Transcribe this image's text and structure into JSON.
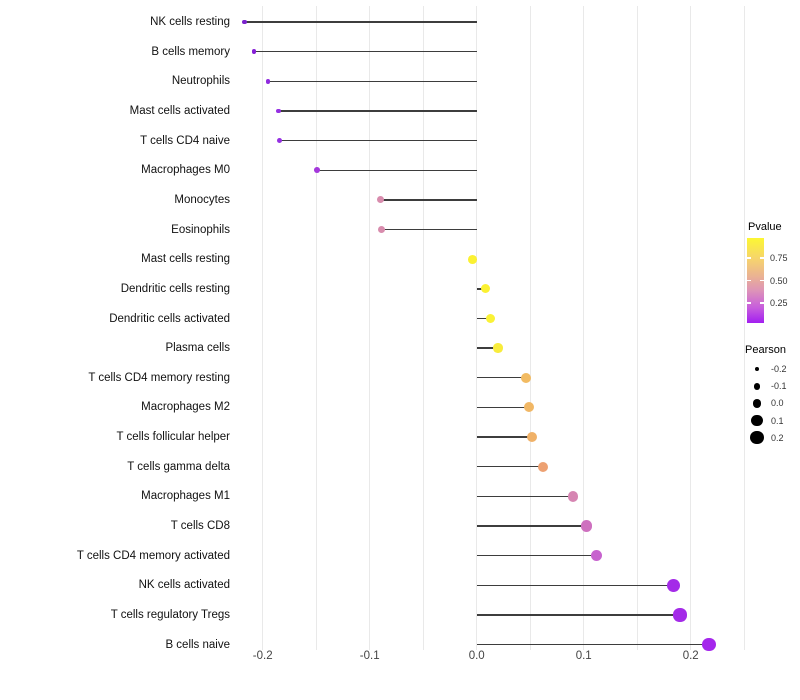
{
  "chart_data": {
    "type": "scatter",
    "variant": "lollipop",
    "orientation": "horizontal",
    "title": "",
    "xlabel": "",
    "ylabel": "",
    "xlim": [
      -0.25,
      0.27
    ],
    "grid": "vertical gridlines every 0.05, light gray on white",
    "legend_position": "right",
    "x_ticks": [
      {
        "label": "-0.2",
        "value": -0.2
      },
      {
        "label": "-0.1",
        "value": -0.1
      },
      {
        "label": "0.0",
        "value": 0.0
      },
      {
        "label": "0.1",
        "value": 0.1
      },
      {
        "label": "0.2",
        "value": 0.2
      }
    ],
    "categories": [
      "NK cells resting",
      "B cells memory",
      "Neutrophils",
      "Mast cells activated",
      "T cells CD4 naive",
      "Macrophages M0",
      "Monocytes",
      "Eosinophils",
      "Mast cells resting",
      "Dendritic cells resting",
      "Dendritic cells activated",
      "Plasma cells",
      "T cells CD4 memory resting",
      "Macrophages M2",
      "T cells follicular helper",
      "T cells gamma delta",
      "Macrophages M1",
      "T cells CD8",
      "T cells CD4 memory activated",
      "NK cells activated",
      "T cells regulatory  Tregs",
      "B cells naive"
    ],
    "series": [
      {
        "name": "Pearson",
        "values": [
          -0.217,
          -0.208,
          -0.195,
          -0.185,
          -0.184,
          -0.149,
          -0.09,
          -0.089,
          -0.004,
          0.008,
          0.013,
          0.02,
          0.046,
          0.049,
          0.052,
          0.062,
          0.09,
          0.103,
          0.112,
          0.184,
          0.19,
          0.217
        ]
      }
    ],
    "point_colors": [
      "#7a22cc",
      "#851fd6",
      "#8f2bde",
      "#9530e2",
      "#9530e2",
      "#a438db",
      "#d88cad",
      "#d88cad",
      "#fbf132",
      "#fbf132",
      "#faf236",
      "#f8ec3c",
      "#f2bb62",
      "#f1b765",
      "#f0b167",
      "#eda172",
      "#d685b2",
      "#ce70bf",
      "#c763ce",
      "#a42be8",
      "#a42be8",
      "#a527ec"
    ]
  },
  "legend": {
    "pvalue": {
      "title": "Pvalue",
      "tick_labels": [
        "0.75",
        "0.50",
        "0.25"
      ],
      "gradient_top_color": "#fcf733",
      "gradient_bottom_color": "#a21ff0"
    },
    "pearson": {
      "title": "Pearson",
      "items": [
        {
          "label": "-0.2",
          "value": -0.2
        },
        {
          "label": "-0.1",
          "value": -0.1
        },
        {
          "label": "0.0",
          "value": 0.0
        },
        {
          "label": "0.1",
          "value": 0.1
        },
        {
          "label": "0.2",
          "value": 0.2
        }
      ]
    }
  }
}
